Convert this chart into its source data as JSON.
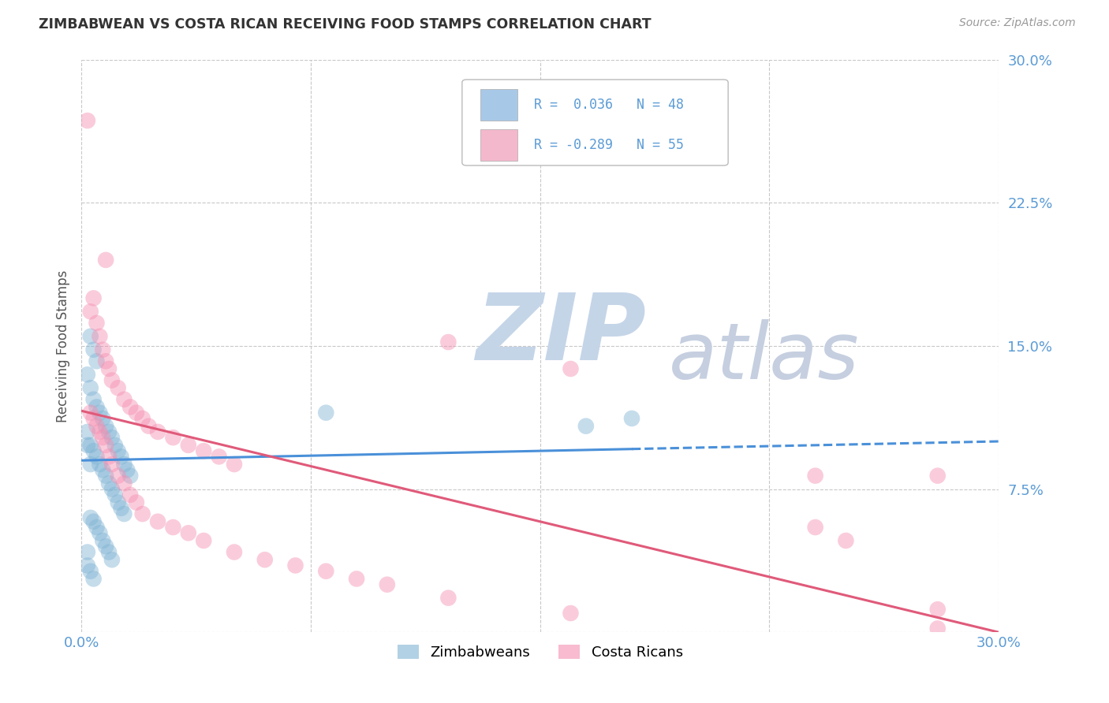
{
  "title": "ZIMBABWEAN VS COSTA RICAN RECEIVING FOOD STAMPS CORRELATION CHART",
  "source": "Source: ZipAtlas.com",
  "ylabel": "Receiving Food Stamps",
  "xlim": [
    0.0,
    0.3
  ],
  "ylim": [
    0.0,
    0.3
  ],
  "yticks": [
    0.0,
    0.075,
    0.15,
    0.225,
    0.3
  ],
  "ytick_labels": [
    "",
    "7.5%",
    "15.0%",
    "22.5%",
    "30.0%"
  ],
  "xticks": [
    0.0,
    0.075,
    0.15,
    0.225,
    0.3
  ],
  "xtick_labels": [
    "0.0%",
    "",
    "",
    "",
    "30.0%"
  ],
  "zimbabwean_color": "#7fb3d3",
  "costa_rican_color": "#f48fb1",
  "zimbabwean_line_color": "#4a90d9",
  "costa_rican_line_color": "#e05a7a",
  "background_color": "#ffffff",
  "grid_color": "#c8c8c8",
  "watermark_zip": "ZIP",
  "watermark_atlas": "atlas",
  "watermark_color_zip": "#c5d5e8",
  "watermark_color_atlas": "#c5cfe0",
  "title_color": "#333333",
  "axis_label_color": "#555555",
  "tick_label_color": "#5b9bd5",
  "legend_entries": [
    {
      "label": "R =  0.036   N = 48",
      "color": "#a8c8e8"
    },
    {
      "label": "R = -0.289   N = 55",
      "color": "#f4b8cc"
    }
  ],
  "zimbabwean_points": [
    [
      0.003,
      0.155
    ],
    [
      0.004,
      0.148
    ],
    [
      0.005,
      0.142
    ],
    [
      0.002,
      0.135
    ],
    [
      0.003,
      0.128
    ],
    [
      0.004,
      0.122
    ],
    [
      0.005,
      0.118
    ],
    [
      0.006,
      0.115
    ],
    [
      0.007,
      0.112
    ],
    [
      0.008,
      0.108
    ],
    [
      0.009,
      0.105
    ],
    [
      0.01,
      0.102
    ],
    [
      0.011,
      0.098
    ],
    [
      0.012,
      0.095
    ],
    [
      0.013,
      0.092
    ],
    [
      0.014,
      0.088
    ],
    [
      0.015,
      0.085
    ],
    [
      0.016,
      0.082
    ],
    [
      0.003,
      0.098
    ],
    [
      0.004,
      0.095
    ],
    [
      0.005,
      0.092
    ],
    [
      0.006,
      0.088
    ],
    [
      0.007,
      0.085
    ],
    [
      0.008,
      0.082
    ],
    [
      0.009,
      0.078
    ],
    [
      0.01,
      0.075
    ],
    [
      0.011,
      0.072
    ],
    [
      0.012,
      0.068
    ],
    [
      0.013,
      0.065
    ],
    [
      0.014,
      0.062
    ],
    [
      0.003,
      0.06
    ],
    [
      0.004,
      0.058
    ],
    [
      0.005,
      0.055
    ],
    [
      0.006,
      0.052
    ],
    [
      0.007,
      0.048
    ],
    [
      0.008,
      0.045
    ],
    [
      0.009,
      0.042
    ],
    [
      0.01,
      0.038
    ],
    [
      0.002,
      0.042
    ],
    [
      0.002,
      0.035
    ],
    [
      0.003,
      0.032
    ],
    [
      0.004,
      0.028
    ],
    [
      0.08,
      0.115
    ],
    [
      0.002,
      0.105
    ],
    [
      0.002,
      0.098
    ],
    [
      0.003,
      0.088
    ],
    [
      0.18,
      0.112
    ],
    [
      0.165,
      0.108
    ]
  ],
  "costa_rican_points": [
    [
      0.002,
      0.268
    ],
    [
      0.008,
      0.195
    ],
    [
      0.004,
      0.175
    ],
    [
      0.003,
      0.168
    ],
    [
      0.005,
      0.162
    ],
    [
      0.006,
      0.155
    ],
    [
      0.007,
      0.148
    ],
    [
      0.008,
      0.142
    ],
    [
      0.009,
      0.138
    ],
    [
      0.01,
      0.132
    ],
    [
      0.012,
      0.128
    ],
    [
      0.014,
      0.122
    ],
    [
      0.016,
      0.118
    ],
    [
      0.018,
      0.115
    ],
    [
      0.02,
      0.112
    ],
    [
      0.022,
      0.108
    ],
    [
      0.025,
      0.105
    ],
    [
      0.03,
      0.102
    ],
    [
      0.035,
      0.098
    ],
    [
      0.04,
      0.095
    ],
    [
      0.045,
      0.092
    ],
    [
      0.05,
      0.088
    ],
    [
      0.003,
      0.115
    ],
    [
      0.004,
      0.112
    ],
    [
      0.005,
      0.108
    ],
    [
      0.006,
      0.105
    ],
    [
      0.007,
      0.102
    ],
    [
      0.008,
      0.098
    ],
    [
      0.009,
      0.092
    ],
    [
      0.01,
      0.088
    ],
    [
      0.012,
      0.082
    ],
    [
      0.014,
      0.078
    ],
    [
      0.016,
      0.072
    ],
    [
      0.018,
      0.068
    ],
    [
      0.02,
      0.062
    ],
    [
      0.025,
      0.058
    ],
    [
      0.03,
      0.055
    ],
    [
      0.035,
      0.052
    ],
    [
      0.04,
      0.048
    ],
    [
      0.05,
      0.042
    ],
    [
      0.06,
      0.038
    ],
    [
      0.07,
      0.035
    ],
    [
      0.08,
      0.032
    ],
    [
      0.09,
      0.028
    ],
    [
      0.1,
      0.025
    ],
    [
      0.12,
      0.018
    ],
    [
      0.16,
      0.138
    ],
    [
      0.12,
      0.152
    ],
    [
      0.24,
      0.082
    ],
    [
      0.28,
      0.082
    ],
    [
      0.24,
      0.055
    ],
    [
      0.25,
      0.048
    ],
    [
      0.28,
      0.012
    ],
    [
      0.16,
      0.01
    ],
    [
      0.28,
      0.002
    ]
  ],
  "zim_line": {
    "x0": 0.0,
    "y0": 0.09,
    "x1": 0.3,
    "y1": 0.1
  },
  "cr_line": {
    "x0": 0.0,
    "y0": 0.116,
    "x1": 0.3,
    "y1": 0.0
  }
}
